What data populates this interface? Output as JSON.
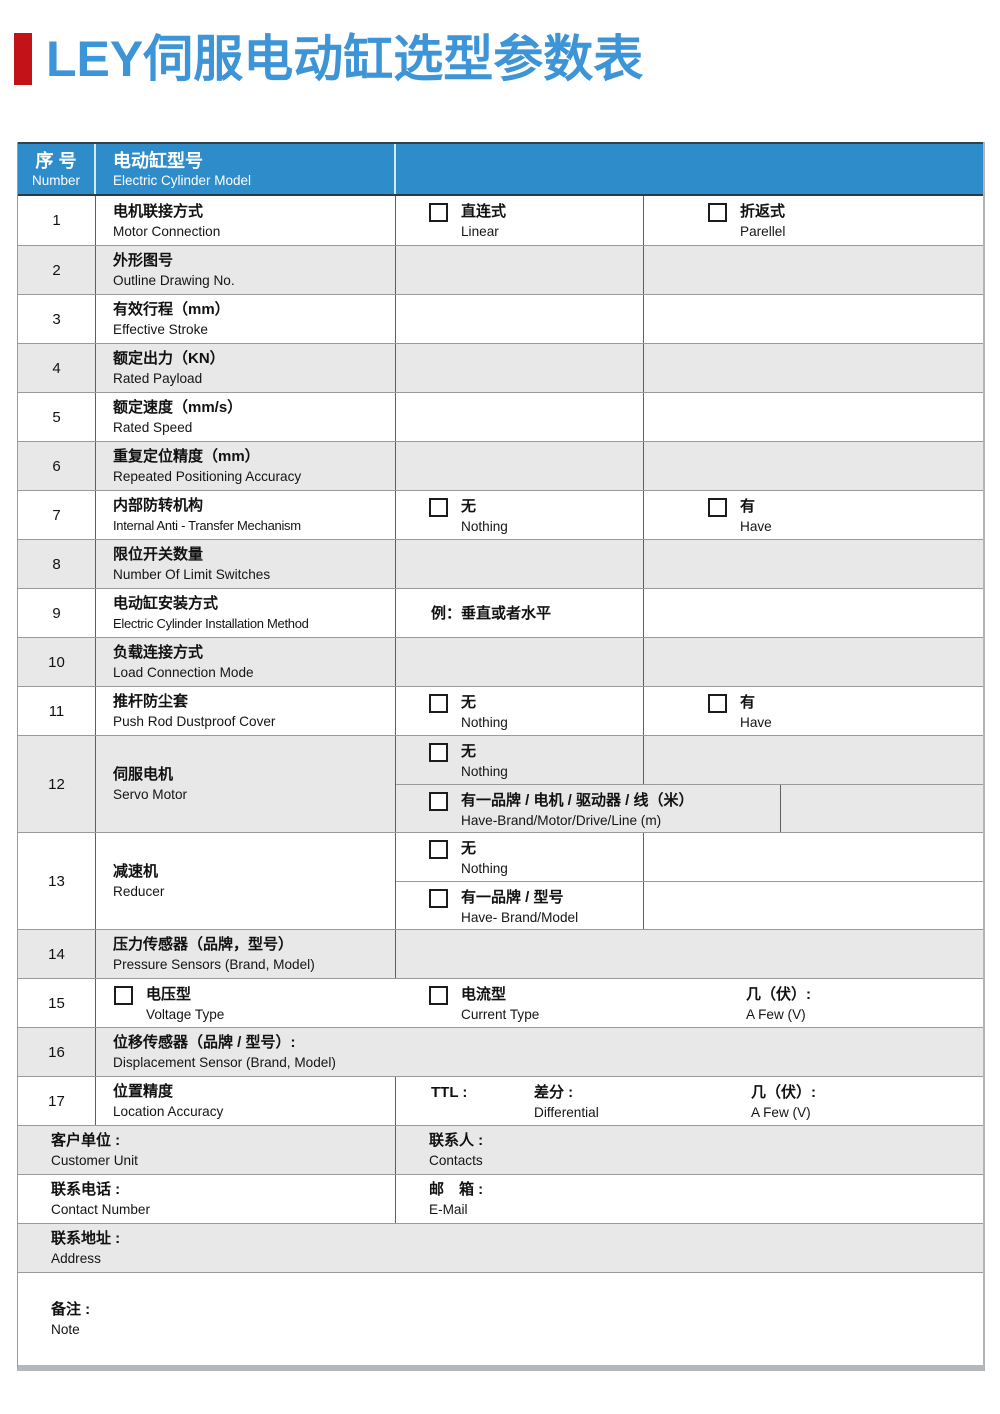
{
  "page": {
    "title": "LEY伺服电动缸选型参数表"
  },
  "colors": {
    "accent_red": "#c41318",
    "title_blue": "#3d94d6",
    "header_blue": "#2e8cca",
    "row_gray": "#e8e8e8",
    "border_gray": "#9a9a9a",
    "shadow_gray": "#b5b8ba"
  },
  "table_header": {
    "num_zh": "序 号",
    "num_en": "Number",
    "model_zh": "电动缸型号",
    "model_en": "Electric Cylinder Model"
  },
  "rows": {
    "r1": {
      "num": "1",
      "zh": "电机联接方式",
      "en": "Motor Connection",
      "opt1_zh": "直连式",
      "opt1_en": "Linear",
      "opt2_zh": "折返式",
      "opt2_en": "Parellel"
    },
    "r2": {
      "num": "2",
      "zh": "外形图号",
      "en": "Outline Drawing No."
    },
    "r3": {
      "num": "3",
      "zh": "有效行程（mm）",
      "en": "Effective Stroke"
    },
    "r4": {
      "num": "4",
      "zh": "额定出力（KN）",
      "en": "Rated Payload"
    },
    "r5": {
      "num": "5",
      "zh": "额定速度（mm/s）",
      "en": "Rated Speed"
    },
    "r6": {
      "num": "6",
      "zh": "重复定位精度（mm）",
      "en": "Repeated Positioning Accuracy"
    },
    "r7": {
      "num": "7",
      "zh": "内部防转机构",
      "en": "Internal Anti - Transfer Mechanism",
      "opt1_zh": "无",
      "opt1_en": "Nothing",
      "opt2_zh": "有",
      "opt2_en": "Have"
    },
    "r8": {
      "num": "8",
      "zh": "限位开关数量",
      "en": "Number Of Limit Switches"
    },
    "r9": {
      "num": "9",
      "zh": "电动缸安装方式",
      "en": "Electric Cylinder Installation Method",
      "example": "例：垂直或者水平"
    },
    "r10": {
      "num": "10",
      "zh": "负载连接方式",
      "en": "Load Connection Mode"
    },
    "r11": {
      "num": "11",
      "zh": "推杆防尘套",
      "en": "Push Rod Dustproof Cover",
      "opt1_zh": "无",
      "opt1_en": "Nothing",
      "opt2_zh": "有",
      "opt2_en": "Have"
    },
    "r12": {
      "num": "12",
      "zh": "伺服电机",
      "en": "Servo Motor",
      "opt1_zh": "无",
      "opt1_en": "Nothing",
      "opt2_zh": "有一品牌 / 电机 / 驱动器 / 线（米）",
      "opt2_en": "Have-Brand/Motor/Drive/Line (m)"
    },
    "r13": {
      "num": "13",
      "zh": "减速机",
      "en": "Reducer",
      "opt1_zh": "无",
      "opt1_en": "Nothing",
      "opt2_zh": "有一品牌 / 型号",
      "opt2_en": "Have- Brand/Model"
    },
    "r14": {
      "num": "14",
      "zh": "压力传感器（品牌，型号）",
      "en": "Pressure Sensors (Brand, Model)"
    },
    "r15": {
      "num": "15",
      "opt1_zh": "电压型",
      "opt1_en": "Voltage Type",
      "opt2_zh": "电流型",
      "opt2_en": "Current Type",
      "volts_zh": "几（伏）:",
      "volts_en": "A Few (V)"
    },
    "r16": {
      "num": "16",
      "zh": "位移传感器（品牌 / 型号）:",
      "en": "Displacement Sensor (Brand, Model)"
    },
    "r17": {
      "num": "17",
      "zh": "位置精度",
      "en": "Location Accuracy",
      "ttl": "TTL :",
      "diff_zh": "差分 :",
      "diff_en": "Differential",
      "volts_zh": "几（伏）:",
      "volts_en": "A Few (V)"
    }
  },
  "footer": {
    "customer_zh": "客户单位 :",
    "customer_en": "Customer Unit",
    "contacts_zh": "联系人 :",
    "contacts_en": "Contacts",
    "phone_zh": "联系电话 :",
    "phone_en": "Contact Number",
    "email_zh": "邮　箱 :",
    "email_en": "E-Mail",
    "address_zh": "联系地址 :",
    "address_en": "Address",
    "note_zh": "备注 :",
    "note_en": "Note"
  }
}
